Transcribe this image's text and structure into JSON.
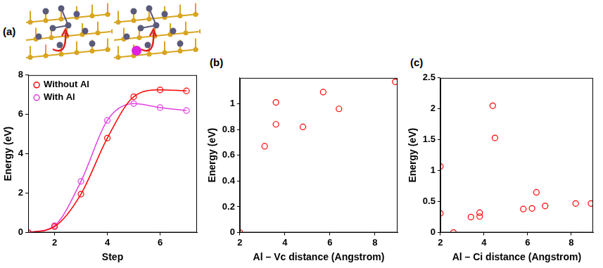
{
  "chart_data": [
    {
      "type": "line",
      "panel": "(a)",
      "x_label": "Step",
      "y_label": "Energy (eV)",
      "x": [
        1,
        2,
        3,
        4,
        5,
        6,
        7
      ],
      "series": [
        {
          "name": "Without Al",
          "color": "#ff0000",
          "values": [
            0,
            0.3,
            1.95,
            4.8,
            6.9,
            7.25,
            7.2
          ],
          "marker": "circle",
          "line_style": "solid"
        },
        {
          "name": "With Al",
          "color": "#e040e0",
          "values": [
            0,
            0.35,
            2.6,
            5.7,
            6.55,
            6.35,
            6.2
          ],
          "marker": "circle",
          "line_style": "solid"
        }
      ],
      "xlim": [
        1,
        7.4
      ],
      "xticks": [
        2,
        4,
        6
      ],
      "ylim": [
        0,
        8
      ],
      "yticks": [
        0,
        2,
        4,
        6,
        8
      ],
      "legend": "upper left",
      "grid": false
    },
    {
      "type": "scatter",
      "panel": "(b)",
      "x_label": "Al – Vc distance (Angstrom)",
      "y_label": "Energy (eV)",
      "x": [
        2.0,
        3.1,
        3.6,
        3.6,
        4.8,
        5.7,
        6.4,
        8.9
      ],
      "values": [
        0.0,
        0.67,
        0.84,
        1.01,
        0.82,
        1.09,
        0.96,
        1.17
      ],
      "color": "#ff0000",
      "marker": "circle",
      "xlim": [
        2,
        9
      ],
      "xticks": [
        2,
        4,
        6,
        8
      ],
      "ylim": [
        0,
        1.2
      ],
      "yticks": [
        0,
        0.2,
        0.4,
        0.6,
        0.8,
        1
      ],
      "grid": false
    },
    {
      "type": "scatter",
      "panel": "(c)",
      "x_label": "Al – Ci distance (Angstrom)",
      "y_label": "Energy (eV)",
      "x": [
        2.0,
        2.0,
        2.6,
        3.4,
        3.8,
        3.8,
        4.4,
        4.5,
        5.8,
        6.2,
        6.4,
        6.8,
        8.2,
        8.9
      ],
      "values": [
        1.07,
        0.31,
        0.0,
        0.25,
        0.32,
        0.26,
        2.05,
        1.53,
        0.38,
        0.39,
        0.65,
        0.43,
        0.47,
        0.47
      ],
      "color": "#ff0000",
      "marker": "circle",
      "xlim": [
        2,
        9
      ],
      "xticks": [
        2,
        4,
        6,
        8
      ],
      "ylim": [
        0,
        2.5
      ],
      "yticks": [
        0,
        0.5,
        1,
        1.5,
        2,
        2.5
      ],
      "grid": false
    }
  ]
}
